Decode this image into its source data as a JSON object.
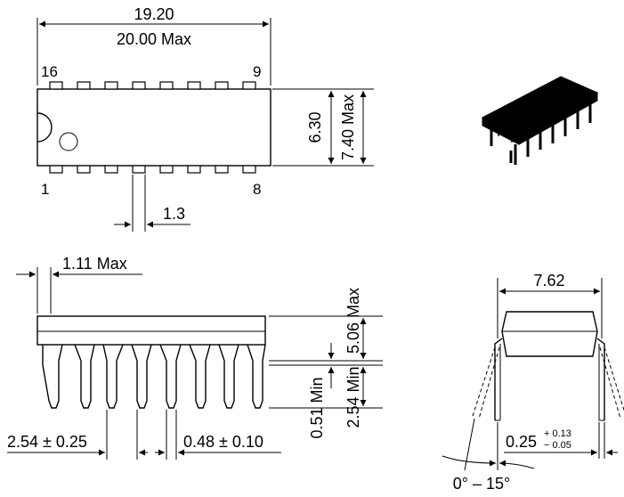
{
  "top_view": {
    "length": "19.20",
    "length_max": "20.00 Max",
    "pin_16": "16",
    "pin_9": "9",
    "pin_1": "1",
    "pin_8": "8",
    "width": "6.30",
    "width_max": "7.40 Max",
    "pin_width": "1.3"
  },
  "side_view": {
    "end_offset_max": "1.11 Max",
    "height_max": "5.06 Max",
    "standoff_min": "0.51 Min",
    "lead_length_min": "2.54 Min",
    "pitch": "2.54 ± 0.25",
    "lead_width": "0.48 ± 0.10"
  },
  "end_view": {
    "row_spacing": "7.62",
    "lead_thickness": "0.25",
    "lead_thickness_tol_plus": "+ 0.13",
    "lead_thickness_tol_minus": "− 0.05",
    "lead_angle": "0° – 15°"
  },
  "colors": {
    "ink": "#000000",
    "paper": "#ffffff"
  }
}
